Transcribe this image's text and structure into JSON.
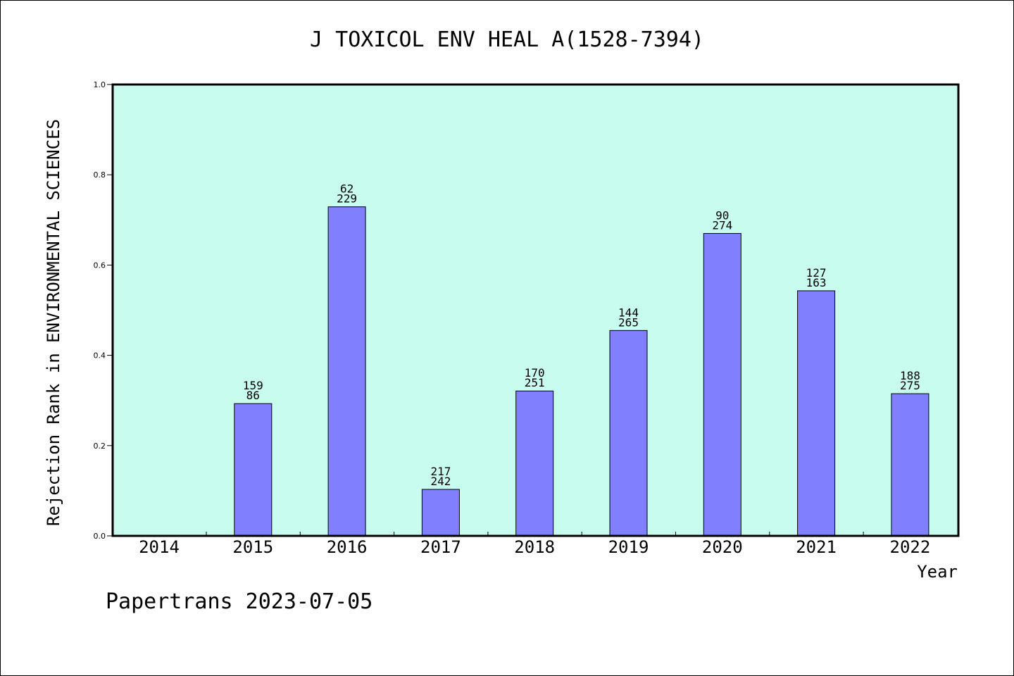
{
  "chart_data": {
    "type": "bar",
    "title": "J TOXICOL ENV HEAL A(1528-7394)",
    "xlabel": "Year",
    "ylabel": "Rejection Rank in ENVIRONMENTAL SCIENCES",
    "ylim": [
      0,
      1.0
    ],
    "yticks": [
      "0.0",
      "0.2",
      "0.4",
      "0.6",
      "0.8",
      "1.0"
    ],
    "categories": [
      "2014",
      "2015",
      "2016",
      "2017",
      "2018",
      "2019",
      "2020",
      "2021",
      "2022"
    ],
    "values": [
      null,
      0.293,
      0.729,
      0.103,
      0.321,
      0.455,
      0.67,
      0.543,
      0.315
    ],
    "labels_top": [
      "",
      "159",
      "62",
      "217",
      "170",
      "144",
      "90",
      "127",
      "188"
    ],
    "labels_bottom": [
      "",
      "86",
      "229",
      "242",
      "251",
      "265",
      "274",
      "163",
      "275"
    ],
    "grid": false,
    "colors": {
      "bar": "#8080ff",
      "plot_bg": "#c8fcee",
      "frame": "#000000"
    }
  },
  "watermark": "Papertrans 2023-07-05"
}
